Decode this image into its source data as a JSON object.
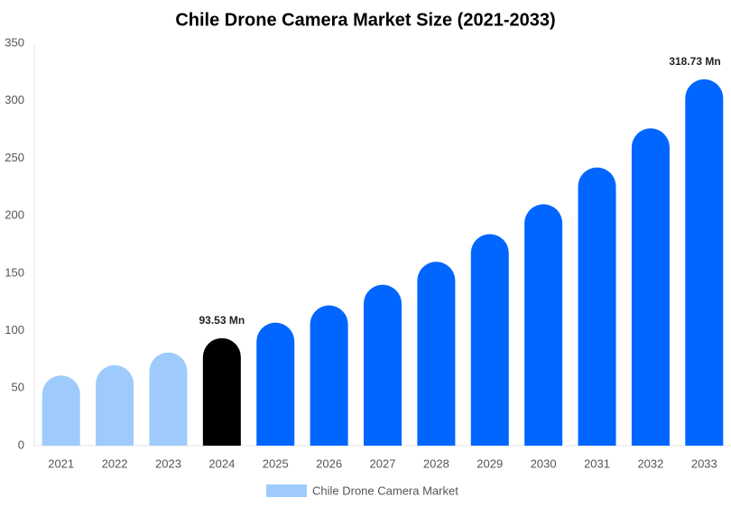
{
  "chart_data": {
    "type": "bar",
    "title": "Chile Drone Camera Market Size (2021-2033)",
    "categories": [
      "2021",
      "2022",
      "2023",
      "2024",
      "2025",
      "2026",
      "2027",
      "2028",
      "2029",
      "2030",
      "2031",
      "2032",
      "2033"
    ],
    "series": [
      {
        "name": "Chile Drone Camera Market",
        "color": "#9ecbfc",
        "values": [
          61,
          70,
          81,
          93.53,
          107,
          122,
          140,
          160,
          184,
          210,
          242,
          276,
          318.73
        ],
        "value_labels": [
          null,
          null,
          null,
          "93.53 Mn",
          null,
          null,
          null,
          null,
          null,
          null,
          null,
          null,
          "318.73 Mn"
        ],
        "colors": [
          "#9ecbfc",
          "#9ecbfc",
          "#9ecbfc",
          "#000000",
          "#0066ff",
          "#0066ff",
          "#0066ff",
          "#0066ff",
          "#0066ff",
          "#0066ff",
          "#0066ff",
          "#0066ff",
          "#0066ff"
        ]
      }
    ],
    "ylim": [
      0,
      350
    ],
    "yticks": [
      0,
      50,
      100,
      150,
      200,
      250,
      300,
      350
    ],
    "grid": false
  }
}
